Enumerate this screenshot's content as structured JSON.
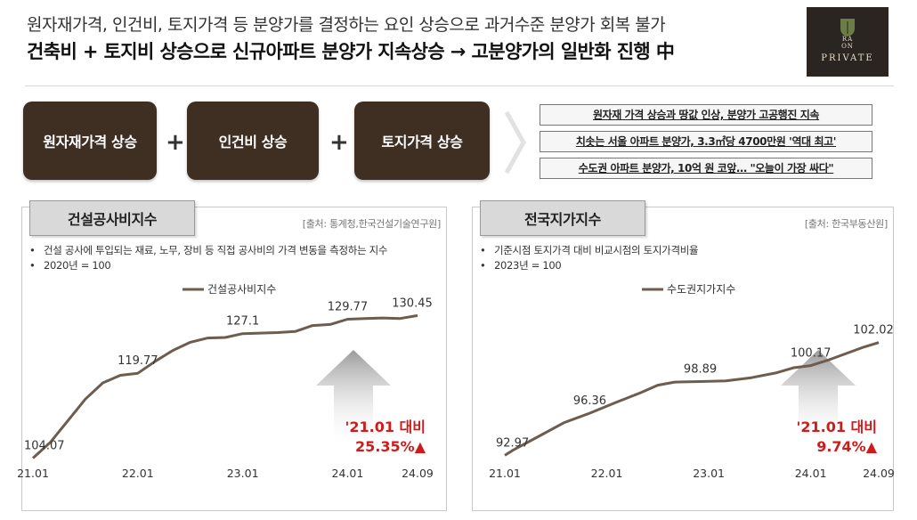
{
  "header": {
    "subtitle": "원자재가격, 인건비, 토지가격 등 분양가를 결정하는 요인 상승으로 과거수준 분양가 회복 불가",
    "title": "건축비 + 토지비 상승으로 신규아파트 분양가 지속상승 → 고분양가의 일반화 진행 中"
  },
  "logo": {
    "line1": "RA",
    "line2": "ON",
    "name": "PRIVATE"
  },
  "factors": [
    "원자재가격 상승",
    "인건비 상승",
    "토지가격 상승"
  ],
  "plus_sign": "+",
  "news": [
    "원자재 가격 상승과 땅값 인상, 분양가 고공행진 지속",
    "치솟는 서울 아파트 분양가, 3.3㎡당 4700만원 '역대 최고'",
    "수도권 아파트 분양가, 10억 원 코앞… \"오늘이 가장 싸다\""
  ],
  "colors": {
    "line": "#6e5c4e",
    "accent": "#d01b1b",
    "factor_bg": "#3f2e22"
  },
  "panels": [
    {
      "title": "건설공사비지수",
      "source": "[출처: 통계청,한국건설기술연구원]",
      "bullets": [
        "건설 공사에 투입되는 재료, 노무, 장비 등 직접 공사비의 가격 변동을 측정하는 지수",
        "2020년 = 100"
      ],
      "highlight": [
        "'21.01 대비",
        "25.35%▲"
      ]
    },
    {
      "title": "전국지가지수",
      "source": "[출처: 한국부동산원]",
      "bullets": [
        "기준시점 토지가격 대비 비교시점의 토지가격비율",
        "2023년 = 100"
      ],
      "highlight": [
        "'21.01 대비",
        "9.74%▲"
      ]
    }
  ],
  "chart_data": [
    {
      "type": "line",
      "series": [
        {
          "name": "건설공사비지수",
          "values": [
            104.07,
            107,
            111,
            115,
            118,
            119.4,
            119.77,
            122,
            124,
            125.5,
            126.3,
            126.4,
            127.1,
            127.2,
            127.3,
            127.5,
            128.6,
            128.8,
            129.77,
            129.9,
            130.0,
            129.9,
            130.45
          ]
        }
      ],
      "x_positions": [
        0,
        1,
        2,
        3,
        4,
        5,
        6,
        7,
        8,
        9,
        10,
        11,
        12,
        13,
        14,
        15,
        16,
        17,
        18,
        19,
        20,
        21,
        22
      ],
      "x_ticks": [
        {
          "at": 0,
          "label": "21.01"
        },
        {
          "at": 6,
          "label": "22.01"
        },
        {
          "at": 12,
          "label": "23.01"
        },
        {
          "at": 18,
          "label": "24.01"
        },
        {
          "at": 22,
          "label": "24.09"
        }
      ],
      "value_labels": [
        {
          "index": 0,
          "text": "104.07"
        },
        {
          "index": 6,
          "text": "119.77"
        },
        {
          "index": 12,
          "text": "127.1"
        },
        {
          "index": 18,
          "text": "129.77"
        },
        {
          "index": 22,
          "text": "130.45"
        }
      ],
      "ylim": [
        103,
        132
      ],
      "legend": "top-center"
    },
    {
      "type": "line",
      "series": [
        {
          "name": "수도권지가지수",
          "values": [
            92.97,
            93.4,
            94.5,
            95.6,
            96.36,
            97.2,
            98.0,
            98.6,
            98.85,
            98.89,
            98.95,
            99.2,
            99.6,
            100.0,
            100.17,
            100.6,
            101.1,
            101.6,
            102.02
          ]
        }
      ],
      "x_positions": [
        0,
        0.5,
        2,
        3.5,
        5,
        6.5,
        8,
        9,
        10,
        11.5,
        13,
        14.5,
        16,
        17,
        18,
        19,
        20,
        21,
        22
      ],
      "x_ticks": [
        {
          "at": 0,
          "label": "21.01"
        },
        {
          "at": 6,
          "label": "22.01"
        },
        {
          "at": 12,
          "label": "23.01"
        },
        {
          "at": 18,
          "label": "24.01"
        },
        {
          "at": 22,
          "label": "24.09"
        }
      ],
      "value_labels": [
        {
          "index": 0,
          "text": "92.97"
        },
        {
          "index": 4,
          "text": "96.36"
        },
        {
          "index": 9,
          "text": "98.89"
        },
        {
          "index": 14,
          "text": "100.17"
        },
        {
          "index": 18,
          "text": "102.02"
        }
      ],
      "ylim": [
        92,
        103
      ],
      "legend": "top-center"
    }
  ]
}
